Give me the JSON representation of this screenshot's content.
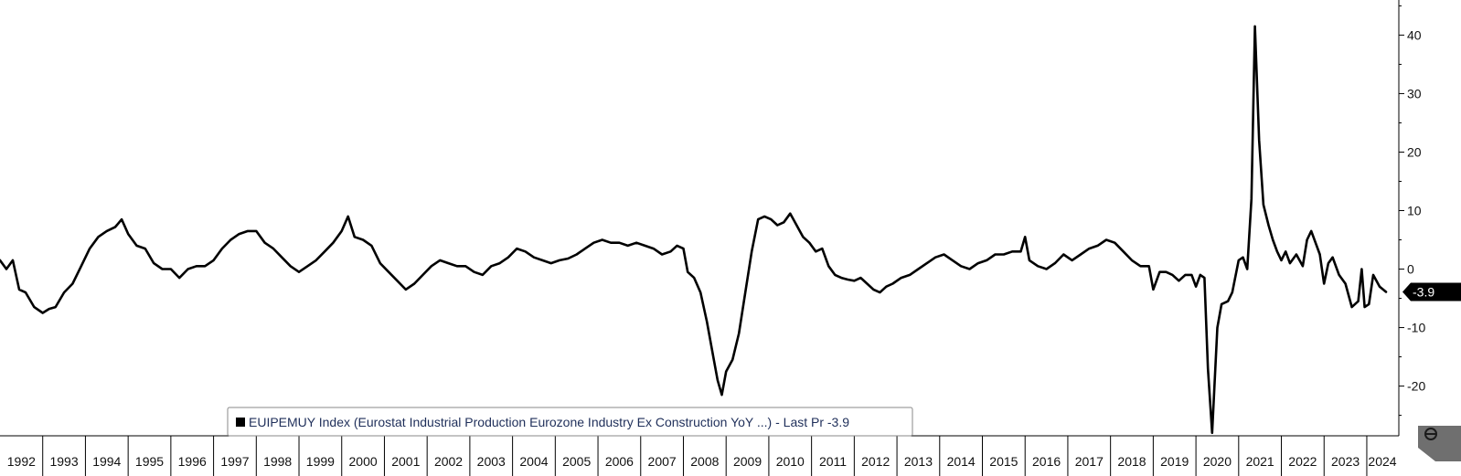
{
  "chart_data": {
    "type": "line",
    "title": "",
    "xlabel": "",
    "ylabel": "",
    "ylim": [
      -28.5,
      46
    ],
    "xlim": [
      1992.0,
      2024.75
    ],
    "y_ticks": [
      40,
      30,
      20,
      10,
      0,
      -10,
      -20
    ],
    "x_tick_labels": [
      "1992",
      "1993",
      "1994",
      "1995",
      "1996",
      "1997",
      "1998",
      "1999",
      "2000",
      "2001",
      "2002",
      "2003",
      "2004",
      "2005",
      "2006",
      "2007",
      "2008",
      "2009",
      "2010",
      "2011",
      "2012",
      "2013",
      "2014",
      "2015",
      "2016",
      "2017",
      "2018",
      "2019",
      "2020",
      "2021",
      "2022",
      "2023",
      "2024"
    ],
    "legend": {
      "text": "EUIPEMUY Index (Eurostat Industrial Production Eurozone Industry Ex Construction YoY ...) - Last Pr -3.9",
      "placement": "bottom-center"
    },
    "last_value_label": "-3.9",
    "grid": false,
    "series": [
      {
        "color": "#000000",
        "points": [
          [
            1992.0,
            1.5
          ],
          [
            1992.15,
            0.0
          ],
          [
            1992.3,
            1.5
          ],
          [
            1992.45,
            -3.5
          ],
          [
            1992.6,
            -4.0
          ],
          [
            1992.8,
            -6.5
          ],
          [
            1993.0,
            -7.5
          ],
          [
            1993.15,
            -6.8
          ],
          [
            1993.3,
            -6.5
          ],
          [
            1993.5,
            -4.0
          ],
          [
            1993.7,
            -2.5
          ],
          [
            1993.9,
            0.5
          ],
          [
            1994.1,
            3.5
          ],
          [
            1994.3,
            5.5
          ],
          [
            1994.5,
            6.5
          ],
          [
            1994.7,
            7.2
          ],
          [
            1994.85,
            8.5
          ],
          [
            1995.0,
            6.0
          ],
          [
            1995.2,
            4.0
          ],
          [
            1995.4,
            3.5
          ],
          [
            1995.6,
            1.0
          ],
          [
            1995.8,
            0.0
          ],
          [
            1996.0,
            0.0
          ],
          [
            1996.2,
            -1.5
          ],
          [
            1996.4,
            0.0
          ],
          [
            1996.6,
            0.5
          ],
          [
            1996.8,
            0.5
          ],
          [
            1997.0,
            1.5
          ],
          [
            1997.2,
            3.5
          ],
          [
            1997.4,
            5.0
          ],
          [
            1997.6,
            6.0
          ],
          [
            1997.8,
            6.5
          ],
          [
            1998.0,
            6.5
          ],
          [
            1998.2,
            4.5
          ],
          [
            1998.4,
            3.5
          ],
          [
            1998.6,
            2.0
          ],
          [
            1998.8,
            0.5
          ],
          [
            1999.0,
            -0.5
          ],
          [
            1999.2,
            0.5
          ],
          [
            1999.4,
            1.5
          ],
          [
            1999.6,
            3.0
          ],
          [
            1999.8,
            4.5
          ],
          [
            2000.0,
            6.5
          ],
          [
            2000.15,
            9.0
          ],
          [
            2000.3,
            5.5
          ],
          [
            2000.5,
            5.0
          ],
          [
            2000.7,
            4.0
          ],
          [
            2000.9,
            1.0
          ],
          [
            2001.1,
            -0.5
          ],
          [
            2001.3,
            -2.0
          ],
          [
            2001.5,
            -3.5
          ],
          [
            2001.7,
            -2.5
          ],
          [
            2001.9,
            -1.0
          ],
          [
            2002.1,
            0.5
          ],
          [
            2002.3,
            1.5
          ],
          [
            2002.5,
            1.0
          ],
          [
            2002.7,
            0.5
          ],
          [
            2002.9,
            0.5
          ],
          [
            2003.1,
            -0.5
          ],
          [
            2003.3,
            -1.0
          ],
          [
            2003.5,
            0.5
          ],
          [
            2003.7,
            1.0
          ],
          [
            2003.9,
            2.0
          ],
          [
            2004.1,
            3.5
          ],
          [
            2004.3,
            3.0
          ],
          [
            2004.5,
            2.0
          ],
          [
            2004.7,
            1.5
          ],
          [
            2004.9,
            1.0
          ],
          [
            2005.1,
            1.5
          ],
          [
            2005.3,
            1.8
          ],
          [
            2005.5,
            2.5
          ],
          [
            2005.7,
            3.5
          ],
          [
            2005.9,
            4.5
          ],
          [
            2006.1,
            5.0
          ],
          [
            2006.3,
            4.5
          ],
          [
            2006.5,
            4.5
          ],
          [
            2006.7,
            4.0
          ],
          [
            2006.9,
            4.5
          ],
          [
            2007.1,
            4.0
          ],
          [
            2007.3,
            3.5
          ],
          [
            2007.5,
            2.5
          ],
          [
            2007.7,
            3.0
          ],
          [
            2007.85,
            4.0
          ],
          [
            2008.0,
            3.5
          ],
          [
            2008.1,
            -0.5
          ],
          [
            2008.25,
            -1.5
          ],
          [
            2008.4,
            -4.0
          ],
          [
            2008.55,
            -9.0
          ],
          [
            2008.7,
            -15.0
          ],
          [
            2008.8,
            -19.0
          ],
          [
            2008.9,
            -21.5
          ],
          [
            2009.0,
            -17.5
          ],
          [
            2009.15,
            -15.5
          ],
          [
            2009.3,
            -11.0
          ],
          [
            2009.45,
            -4.0
          ],
          [
            2009.6,
            3.0
          ],
          [
            2009.75,
            8.5
          ],
          [
            2009.9,
            9.0
          ],
          [
            2010.05,
            8.5
          ],
          [
            2010.2,
            7.5
          ],
          [
            2010.35,
            8.0
          ],
          [
            2010.5,
            9.5
          ],
          [
            2010.65,
            7.5
          ],
          [
            2010.8,
            5.5
          ],
          [
            2010.95,
            4.5
          ],
          [
            2011.1,
            3.0
          ],
          [
            2011.25,
            3.5
          ],
          [
            2011.4,
            0.5
          ],
          [
            2011.55,
            -1.0
          ],
          [
            2011.7,
            -1.5
          ],
          [
            2011.85,
            -1.8
          ],
          [
            2012.0,
            -2.0
          ],
          [
            2012.15,
            -1.5
          ],
          [
            2012.3,
            -2.5
          ],
          [
            2012.45,
            -3.5
          ],
          [
            2012.6,
            -4.0
          ],
          [
            2012.75,
            -3.0
          ],
          [
            2012.9,
            -2.5
          ],
          [
            2013.1,
            -1.5
          ],
          [
            2013.3,
            -1.0
          ],
          [
            2013.5,
            0.0
          ],
          [
            2013.7,
            1.0
          ],
          [
            2013.9,
            2.0
          ],
          [
            2014.1,
            2.5
          ],
          [
            2014.3,
            1.5
          ],
          [
            2014.5,
            0.5
          ],
          [
            2014.7,
            0.0
          ],
          [
            2014.9,
            1.0
          ],
          [
            2015.1,
            1.5
          ],
          [
            2015.3,
            2.5
          ],
          [
            2015.5,
            2.5
          ],
          [
            2015.7,
            3.0
          ],
          [
            2015.9,
            3.0
          ],
          [
            2016.0,
            5.5
          ],
          [
            2016.1,
            1.5
          ],
          [
            2016.3,
            0.5
          ],
          [
            2016.5,
            0.0
          ],
          [
            2016.7,
            1.0
          ],
          [
            2016.9,
            2.5
          ],
          [
            2017.1,
            1.5
          ],
          [
            2017.3,
            2.5
          ],
          [
            2017.5,
            3.5
          ],
          [
            2017.7,
            4.0
          ],
          [
            2017.9,
            5.0
          ],
          [
            2018.1,
            4.5
          ],
          [
            2018.3,
            3.0
          ],
          [
            2018.5,
            1.5
          ],
          [
            2018.7,
            0.5
          ],
          [
            2018.9,
            0.5
          ],
          [
            2019.0,
            -3.5
          ],
          [
            2019.15,
            -0.5
          ],
          [
            2019.3,
            -0.5
          ],
          [
            2019.45,
            -1.0
          ],
          [
            2019.6,
            -2.0
          ],
          [
            2019.75,
            -1.0
          ],
          [
            2019.9,
            -1.0
          ],
          [
            2020.0,
            -3.0
          ],
          [
            2020.1,
            -1.0
          ],
          [
            2020.2,
            -1.5
          ],
          [
            2020.28,
            -17.0
          ],
          [
            2020.38,
            -28.0
          ],
          [
            2020.5,
            -10.0
          ],
          [
            2020.6,
            -6.0
          ],
          [
            2020.75,
            -5.5
          ],
          [
            2020.85,
            -4.0
          ],
          [
            2021.0,
            1.5
          ],
          [
            2021.1,
            2.0
          ],
          [
            2021.2,
            0.0
          ],
          [
            2021.3,
            12.0
          ],
          [
            2021.38,
            41.5
          ],
          [
            2021.48,
            22.0
          ],
          [
            2021.58,
            11.0
          ],
          [
            2021.7,
            7.5
          ],
          [
            2021.8,
            5.0
          ],
          [
            2021.9,
            3.0
          ],
          [
            2022.0,
            1.5
          ],
          [
            2022.1,
            3.0
          ],
          [
            2022.2,
            1.0
          ],
          [
            2022.35,
            2.5
          ],
          [
            2022.5,
            0.5
          ],
          [
            2022.6,
            5.0
          ],
          [
            2022.7,
            6.5
          ],
          [
            2022.8,
            4.5
          ],
          [
            2022.9,
            2.5
          ],
          [
            2023.0,
            -2.5
          ],
          [
            2023.1,
            1.0
          ],
          [
            2023.2,
            2.0
          ],
          [
            2023.35,
            -1.0
          ],
          [
            2023.5,
            -2.5
          ],
          [
            2023.65,
            -6.5
          ],
          [
            2023.8,
            -5.5
          ],
          [
            2023.88,
            0.0
          ],
          [
            2023.95,
            -6.5
          ],
          [
            2024.05,
            -6.0
          ],
          [
            2024.15,
            -1.0
          ],
          [
            2024.3,
            -3.0
          ],
          [
            2024.45,
            -3.9
          ]
        ]
      }
    ]
  }
}
